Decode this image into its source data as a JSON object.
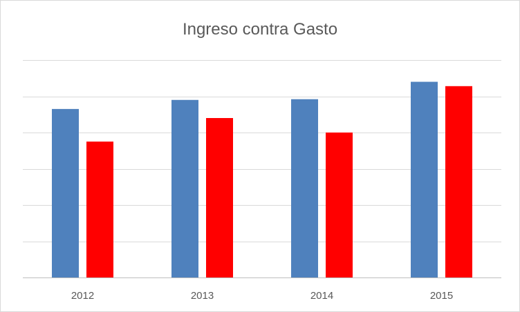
{
  "chart_data": {
    "type": "bar",
    "title": "Ingreso contra Gasto",
    "xlabel": "",
    "ylabel": "",
    "categories": [
      "2012",
      "2013",
      "2014",
      "2015"
    ],
    "series": [
      {
        "values": [
          4.65,
          4.9,
          4.92,
          5.4
        ],
        "color": "#4f81bd"
      },
      {
        "values": [
          3.75,
          4.4,
          4.0,
          5.28
        ],
        "color": "#ff0000"
      }
    ],
    "ylim": [
      0,
      6
    ],
    "y_ticks": [
      0,
      1,
      2,
      3,
      4,
      5,
      6
    ],
    "y_tick_labels_shown": false,
    "grid": true,
    "legend": "none"
  }
}
